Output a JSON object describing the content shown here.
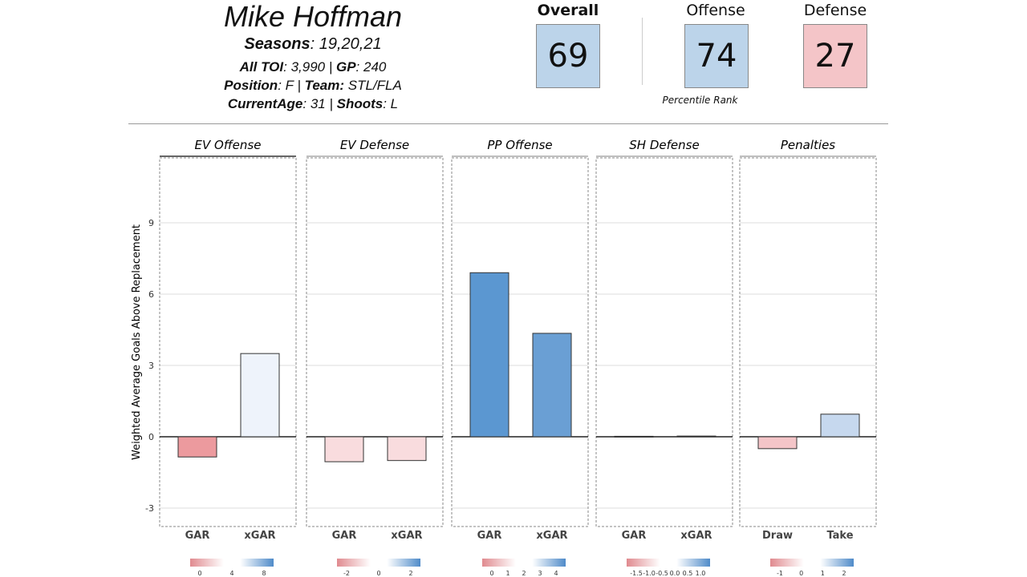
{
  "player": {
    "name": "Mike Hoffman",
    "seasons_label": "Seasons",
    "seasons": ": 19,20,21",
    "toi_label": "All TOI",
    "toi": ": 3,990 | ",
    "gp_label": "GP",
    "gp": ": 240",
    "position_label": "Position",
    "position": ": F | ",
    "team_label": "Team:",
    "team": " STL/FLA",
    "age_label": "CurrentAge",
    "age": ": 31 | ",
    "shoots_label": "Shoots",
    "shoots": ": L"
  },
  "ratings": {
    "overall_label": "Overall",
    "overall": "69",
    "offense_label": "Offense",
    "offense": "74",
    "defense_label": "Defense",
    "defense": "27",
    "note": "Percentile Rank",
    "colors": {
      "blue": "#bcd4ea",
      "red": "#f4c5c8"
    }
  },
  "chart_data": {
    "type": "bar",
    "ylabel": "Weighted Average Goals Above Replacement",
    "ylim": [
      -3.5,
      12
    ],
    "yticks": [
      -3,
      0,
      3,
      6,
      9
    ],
    "panels": [
      {
        "title": "EV Offense",
        "categories": [
          "GAR",
          "xGAR"
        ],
        "values": [
          -0.85,
          3.5
        ],
        "colors": [
          "#ec9a9e",
          "#eef3fb"
        ],
        "legend_ticks": [
          "0",
          "4",
          "8"
        ]
      },
      {
        "title": "EV Defense",
        "categories": [
          "GAR",
          "xGAR"
        ],
        "values": [
          -1.05,
          -1.0
        ],
        "colors": [
          "#f9dcde",
          "#f9dcde"
        ],
        "legend_ticks": [
          "-2",
          "0",
          "2"
        ]
      },
      {
        "title": "PP Offense",
        "categories": [
          "GAR",
          "xGAR"
        ],
        "values": [
          6.9,
          4.35
        ],
        "colors": [
          "#5b97d1",
          "#6a9fd4"
        ],
        "legend_ticks": [
          "0",
          "1",
          "2",
          "3",
          "4"
        ]
      },
      {
        "title": "SH Defense",
        "categories": [
          "GAR",
          "xGAR"
        ],
        "values": [
          0.02,
          0.03
        ],
        "colors": [
          "#ddd",
          "#ddd"
        ],
        "legend_ticks": [
          "-1.5",
          "-1.0",
          "-0.5",
          "0.0",
          "0.5",
          "1.0"
        ]
      },
      {
        "title": "Penalties",
        "categories": [
          "Draw",
          "Take"
        ],
        "values": [
          -0.5,
          0.95
        ],
        "colors": [
          "#f4c5c8",
          "#c6d8ee"
        ],
        "legend_ticks": [
          "-1",
          "0",
          "1",
          "2"
        ]
      }
    ]
  }
}
